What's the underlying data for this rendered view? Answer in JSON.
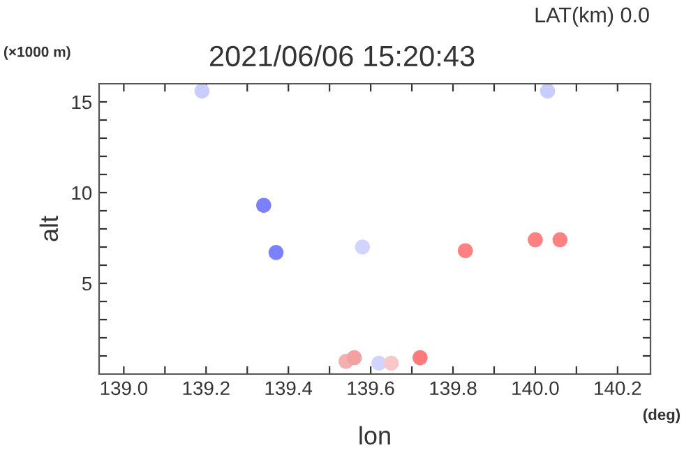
{
  "chart_data": {
    "type": "scatter",
    "title": "2021/06/06 15:20:43",
    "subtitle": "LAT(km) 0.0",
    "xlabel": "lon",
    "ylabel": "alt",
    "annotations": [
      "(×1000 m)",
      "(deg)"
    ],
    "x": [
      139.19,
      139.34,
      139.37,
      139.58,
      139.54,
      139.56,
      139.62,
      139.65,
      139.72,
      139.83,
      140.0,
      140.06,
      140.03
    ],
    "values": [
      15.6,
      9.3,
      6.7,
      7.0,
      0.7,
      0.9,
      0.6,
      0.6,
      0.9,
      6.8,
      7.4,
      7.4,
      15.6
    ],
    "colors": [
      "#c8ccff",
      "#7a80ff",
      "#7a80ff",
      "#d0d4ff",
      "#f4b0b0",
      "#f4a0a0",
      "#d0d4ff",
      "#f8c8c8",
      "#ff7a7a",
      "#ff8080",
      "#ff8080",
      "#ff8080",
      "#c8ccff"
    ],
    "xlim": [
      138.94,
      140.28
    ],
    "ylim": [
      0,
      16
    ],
    "xticks": [
      {
        "value": 139.0,
        "label": "139.0"
      },
      {
        "value": 139.1,
        "label": null
      },
      {
        "value": 139.2,
        "label": "139.2"
      },
      {
        "value": 139.3,
        "label": null
      },
      {
        "value": 139.4,
        "label": "139.4"
      },
      {
        "value": 139.5,
        "label": null
      },
      {
        "value": 139.6,
        "label": "139.6"
      },
      {
        "value": 139.7,
        "label": null
      },
      {
        "value": 139.8,
        "label": "139.8"
      },
      {
        "value": 139.9,
        "label": null
      },
      {
        "value": 140.0,
        "label": "140.0"
      },
      {
        "value": 140.1,
        "label": null
      },
      {
        "value": 140.2,
        "label": "140.2"
      }
    ],
    "yticks": [
      {
        "value": 1,
        "label": null
      },
      {
        "value": 2,
        "label": null
      },
      {
        "value": 3,
        "label": null
      },
      {
        "value": 4,
        "label": null
      },
      5,
      {
        "value": 6,
        "label": null
      },
      {
        "value": 7,
        "label": null
      },
      {
        "value": 8,
        "label": null
      },
      {
        "value": 9,
        "label": null
      },
      10,
      {
        "value": 11,
        "label": null
      },
      {
        "value": 12,
        "label": null
      },
      {
        "value": 13,
        "label": null
      },
      {
        "value": 14,
        "label": null
      },
      15
    ],
    "grid": false,
    "legend": false,
    "marker": "circle"
  }
}
